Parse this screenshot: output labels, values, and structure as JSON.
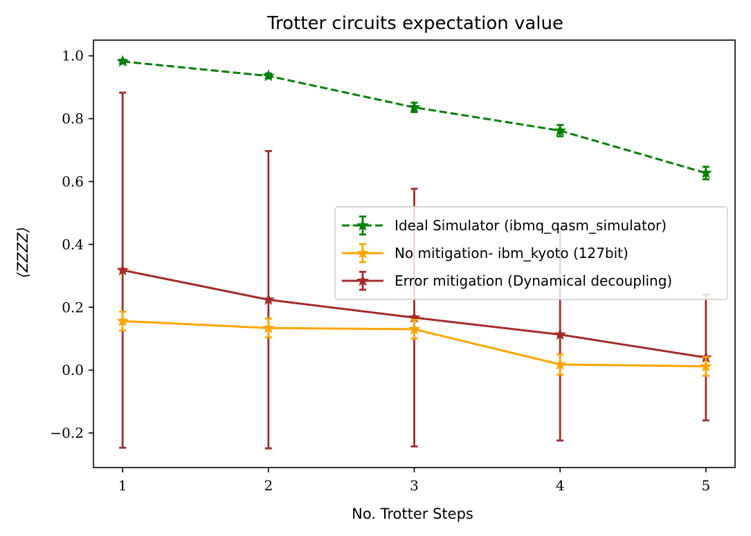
{
  "chart_data": {
    "type": "line",
    "title": "Trotter circuits expectation value",
    "xlabel": "No. Trotter Steps",
    "ylabel": "⟨ZZZZ⟩",
    "xlim": [
      0.8,
      5.2
    ],
    "ylim": [
      -0.31,
      1.05
    ],
    "x": [
      1,
      2,
      3,
      4,
      5
    ],
    "xticks": [
      1,
      2,
      3,
      4,
      5
    ],
    "yticks": [
      -0.2,
      0.0,
      0.2,
      0.4,
      0.6,
      0.8,
      1.0
    ],
    "ytick_labels": [
      "−0.2",
      "0.0",
      "0.2",
      "0.4",
      "0.6",
      "0.8",
      "1.0"
    ],
    "grid": false,
    "legend_position": "center-right",
    "series": [
      {
        "name": "Ideal Simulator (ibmq_qasm_simulator)",
        "values": [
          0.982,
          0.936,
          0.836,
          0.762,
          0.627
        ],
        "errors": [
          0.006,
          0.008,
          0.015,
          0.018,
          0.02
        ],
        "color": "#008000",
        "linestyle": "dashed",
        "marker": "star"
      },
      {
        "name": "No mitigation- ibm_kyoto (127bit)",
        "values": [
          0.156,
          0.134,
          0.13,
          0.018,
          0.012
        ],
        "errors": [
          0.03,
          0.03,
          0.03,
          0.032,
          0.03
        ],
        "color": "#FFA500",
        "linestyle": "solid",
        "marker": "star"
      },
      {
        "name": "Error mitigation (Dynamical decoupling)",
        "values": [
          0.318,
          0.224,
          0.167,
          0.113,
          0.04
        ],
        "errors": [
          0.565,
          0.473,
          0.41,
          0.337,
          0.2
        ],
        "color": "#A52A2A",
        "linestyle": "solid",
        "marker": "star"
      }
    ]
  }
}
